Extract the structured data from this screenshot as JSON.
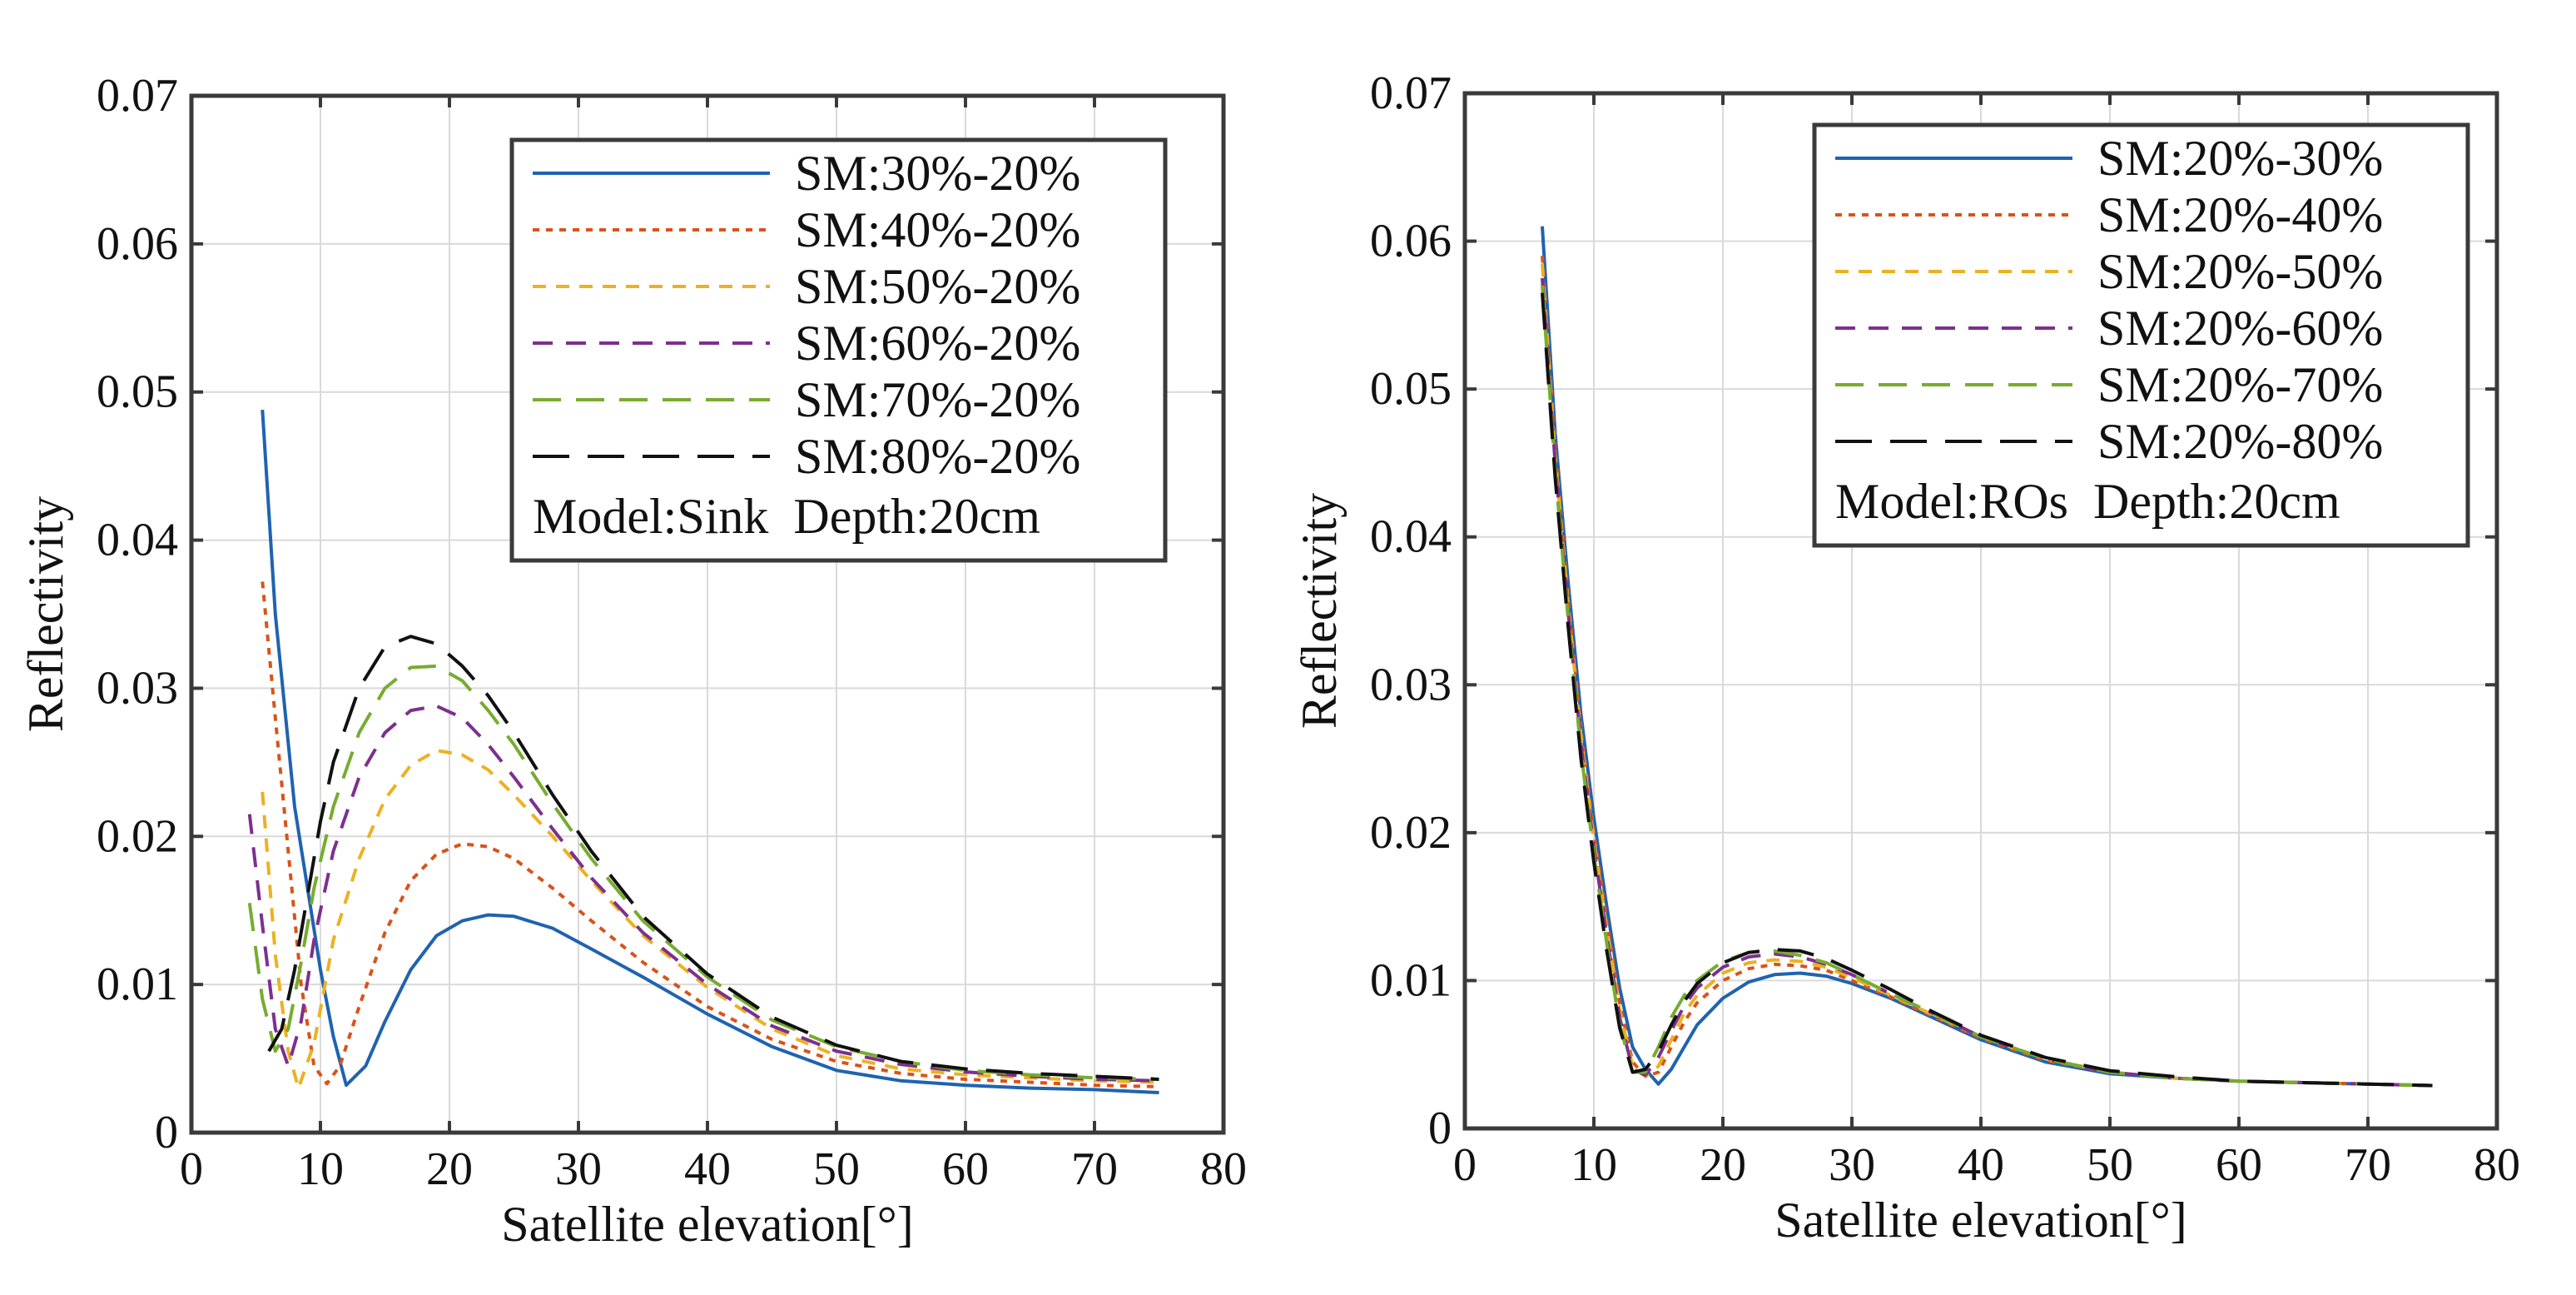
{
  "colors": {
    "series": [
      "#1f63b0",
      "#d95319",
      "#edb120",
      "#7e2f8e",
      "#77ac30",
      "#111111"
    ],
    "axis": "#3a3a3a",
    "grid": "#d9d9d9"
  },
  "chart_data": [
    {
      "type": "line",
      "xlabel": "Satellite elevation[°]",
      "ylabel": "Reflectivity",
      "xlim": [
        0,
        80
      ],
      "ylim": [
        0,
        0.07
      ],
      "xticks": [
        0,
        10,
        20,
        30,
        40,
        50,
        60,
        70,
        80
      ],
      "xtick_labels": [
        "0",
        "10",
        "20",
        "30",
        "40",
        "50",
        "60",
        "70",
        "80"
      ],
      "yticks": [
        0,
        0.01,
        0.02,
        0.03,
        0.04,
        0.05,
        0.06,
        0.07
      ],
      "ytick_labels": [
        "0",
        "0.01",
        "0.02",
        "0.03",
        "0.04",
        "0.05",
        "0.06",
        "0.07"
      ],
      "grid": true,
      "legend_position": "top-right",
      "legend_note": "Model:Sink  Depth:20cm",
      "series": [
        {
          "name": "SM:30%-20%",
          "dash": "solid",
          "x": [
            5.5,
            6.5,
            8,
            10,
            11,
            12,
            13.5,
            15,
            17,
            19,
            21,
            23,
            25,
            28,
            31,
            35,
            40,
            45,
            50,
            55,
            60,
            65,
            70,
            75
          ],
          "y": [
            0.0488,
            0.035,
            0.022,
            0.011,
            0.0065,
            0.0032,
            0.0045,
            0.0075,
            0.011,
            0.0133,
            0.0143,
            0.0147,
            0.0146,
            0.0138,
            0.0124,
            0.0105,
            0.008,
            0.0058,
            0.0042,
            0.0035,
            0.0032,
            0.003,
            0.0029,
            0.0027
          ]
        },
        {
          "name": "SM:40%-20%",
          "dash": "short-dot",
          "x": [
            5.5,
            6.5,
            7.5,
            8.5,
            9.5,
            10.5,
            11.5,
            13,
            15,
            17,
            19,
            21,
            23,
            25,
            28,
            31,
            35,
            40,
            45,
            50,
            55,
            60,
            65,
            70,
            75
          ],
          "y": [
            0.0372,
            0.028,
            0.019,
            0.01,
            0.0045,
            0.0033,
            0.0045,
            0.0085,
            0.0135,
            0.017,
            0.0188,
            0.0195,
            0.0193,
            0.0185,
            0.0165,
            0.0143,
            0.0115,
            0.0085,
            0.0063,
            0.0048,
            0.004,
            0.0036,
            0.0034,
            0.0032,
            0.0031
          ]
        },
        {
          "name": "SM:50%-20%",
          "dash": "dash-short",
          "x": [
            5.5,
            6.5,
            7.5,
            8.3,
            9.5,
            11,
            13,
            15,
            17,
            19,
            21,
            23,
            25,
            28,
            31,
            35,
            40,
            45,
            50,
            55,
            60,
            65,
            70,
            75
          ],
          "y": [
            0.023,
            0.012,
            0.0055,
            0.003,
            0.006,
            0.013,
            0.0185,
            0.0225,
            0.0248,
            0.0258,
            0.0255,
            0.0245,
            0.0228,
            0.02,
            0.017,
            0.0133,
            0.0098,
            0.007,
            0.0052,
            0.0043,
            0.0039,
            0.0037,
            0.0035,
            0.0034
          ]
        },
        {
          "name": "SM:60%-20%",
          "dash": "dash-medium",
          "x": [
            4.5,
            5.5,
            6.5,
            7.5,
            8.5,
            9.5,
            11,
            13,
            15,
            17,
            19,
            21,
            23,
            25,
            28,
            31,
            35,
            40,
            45,
            50,
            55,
            60,
            65,
            70,
            75
          ],
          "y": [
            0.0215,
            0.014,
            0.007,
            0.0045,
            0.0075,
            0.013,
            0.019,
            0.024,
            0.027,
            0.0285,
            0.0288,
            0.028,
            0.0262,
            0.024,
            0.0205,
            0.0172,
            0.0135,
            0.01,
            0.0072,
            0.0055,
            0.0046,
            0.0041,
            0.0038,
            0.0036,
            0.0035
          ]
        },
        {
          "name": "SM:70%-20%",
          "dash": "dash-long",
          "x": [
            4.5,
            5.5,
            6.5,
            7.5,
            8.5,
            9.5,
            11,
            13,
            15,
            17,
            19,
            21,
            23,
            25,
            28,
            31,
            35,
            40,
            45,
            50,
            55,
            60,
            65,
            70,
            75
          ],
          "y": [
            0.0155,
            0.009,
            0.0055,
            0.007,
            0.0115,
            0.0165,
            0.022,
            0.027,
            0.03,
            0.0314,
            0.0315,
            0.0305,
            0.0285,
            0.0262,
            0.0222,
            0.0185,
            0.0143,
            0.0105,
            0.0076,
            0.0058,
            0.0048,
            0.0042,
            0.0039,
            0.0037,
            0.0036
          ]
        },
        {
          "name": "SM:80%-20%",
          "dash": "dash-xlong",
          "x": [
            6,
            7,
            8,
            9,
            10,
            11,
            13,
            15,
            17,
            19,
            21,
            23,
            25,
            28,
            31,
            35,
            40,
            45,
            50,
            55,
            60,
            65,
            70,
            75
          ],
          "y": [
            0.0055,
            0.007,
            0.011,
            0.016,
            0.021,
            0.025,
            0.03,
            0.0328,
            0.0335,
            0.033,
            0.0315,
            0.0295,
            0.027,
            0.0228,
            0.019,
            0.0146,
            0.0107,
            0.0078,
            0.0059,
            0.0048,
            0.0043,
            0.004,
            0.0038,
            0.0036
          ]
        }
      ]
    },
    {
      "type": "line",
      "xlabel": "Satellite elevation[°]",
      "ylabel": "Reflectivity",
      "xlim": [
        0,
        80
      ],
      "ylim": [
        0,
        0.07
      ],
      "xticks": [
        0,
        10,
        20,
        30,
        40,
        50,
        60,
        70,
        80
      ],
      "xtick_labels": [
        "0",
        "10",
        "20",
        "30",
        "40",
        "50",
        "60",
        "70",
        "80"
      ],
      "yticks": [
        0,
        0.01,
        0.02,
        0.03,
        0.04,
        0.05,
        0.06,
        0.07
      ],
      "ytick_labels": [
        "0",
        "0.01",
        "0.02",
        "0.03",
        "0.04",
        "0.05",
        "0.06",
        "0.07"
      ],
      "grid": true,
      "legend_position": "top-right",
      "legend_note": "Model:ROs  Depth:20cm",
      "series": [
        {
          "name": "SM:20%-30%",
          "dash": "solid",
          "x": [
            6,
            7,
            8,
            9,
            10,
            11,
            12,
            13,
            14,
            15,
            16,
            17,
            18,
            20,
            22,
            24,
            26,
            28,
            30,
            33,
            36,
            40,
            45,
            50,
            55,
            60,
            65,
            70,
            75
          ],
          "y": [
            0.061,
            0.047,
            0.037,
            0.028,
            0.021,
            0.015,
            0.0095,
            0.0055,
            0.004,
            0.003,
            0.004,
            0.0055,
            0.007,
            0.0088,
            0.0099,
            0.0104,
            0.0105,
            0.0103,
            0.0098,
            0.0088,
            0.0076,
            0.006,
            0.0045,
            0.0037,
            0.0034,
            0.0032,
            0.0031,
            0.003,
            0.0029
          ]
        },
        {
          "name": "SM:20%-40%",
          "dash": "short-dot",
          "x": [
            6,
            7,
            8,
            9,
            10,
            11,
            12,
            13,
            14,
            15,
            16,
            17,
            18,
            20,
            22,
            24,
            26,
            28,
            30,
            33,
            36,
            40,
            45,
            50,
            55,
            60,
            65,
            70,
            75
          ],
          "y": [
            0.059,
            0.046,
            0.036,
            0.027,
            0.02,
            0.014,
            0.0085,
            0.0045,
            0.0035,
            0.0038,
            0.0055,
            0.0072,
            0.0085,
            0.01,
            0.0108,
            0.0111,
            0.011,
            0.0107,
            0.01,
            0.0089,
            0.0077,
            0.0061,
            0.0046,
            0.0038,
            0.0034,
            0.0032,
            0.0031,
            0.003,
            0.0029
          ]
        },
        {
          "name": "SM:20%-50%",
          "dash": "dash-short",
          "x": [
            6,
            7,
            8,
            9,
            10,
            11,
            12,
            13,
            14,
            15,
            16,
            17,
            18,
            20,
            22,
            24,
            26,
            28,
            30,
            33,
            36,
            40,
            45,
            50,
            55,
            60,
            65,
            70,
            75
          ],
          "y": [
            0.0585,
            0.0455,
            0.0355,
            0.0265,
            0.0195,
            0.0135,
            0.008,
            0.0042,
            0.0035,
            0.0042,
            0.006,
            0.0078,
            0.009,
            0.0105,
            0.0112,
            0.0114,
            0.0113,
            0.0109,
            0.0102,
            0.009,
            0.0078,
            0.0062,
            0.0047,
            0.0038,
            0.0034,
            0.0032,
            0.0031,
            0.003,
            0.0029
          ]
        },
        {
          "name": "SM:20%-60%",
          "dash": "dash-medium",
          "x": [
            6,
            7,
            8,
            9,
            10,
            11,
            12,
            13,
            14,
            15,
            16,
            17,
            18,
            20,
            22,
            24,
            26,
            28,
            30,
            33,
            36,
            40,
            45,
            50,
            55,
            60,
            65,
            70,
            75
          ],
          "y": [
            0.0575,
            0.045,
            0.035,
            0.026,
            0.019,
            0.013,
            0.0075,
            0.004,
            0.0036,
            0.0048,
            0.0066,
            0.0083,
            0.0095,
            0.0109,
            0.0116,
            0.0118,
            0.0116,
            0.0111,
            0.0104,
            0.0091,
            0.0079,
            0.0062,
            0.0047,
            0.0038,
            0.0034,
            0.0032,
            0.0031,
            0.003,
            0.0029
          ]
        },
        {
          "name": "SM:20%-70%",
          "dash": "dash-long",
          "x": [
            6,
            7,
            8,
            9,
            10,
            11,
            12,
            13,
            14,
            15,
            16,
            17,
            18,
            20,
            22,
            24,
            26,
            28,
            30,
            33,
            36,
            40,
            45,
            50,
            55,
            60,
            65,
            70,
            75
          ],
          "y": [
            0.057,
            0.0445,
            0.0345,
            0.0255,
            0.0185,
            0.0125,
            0.007,
            0.0038,
            0.0038,
            0.0055,
            0.0075,
            0.009,
            0.01,
            0.0113,
            0.0119,
            0.012,
            0.0117,
            0.0112,
            0.0104,
            0.0091,
            0.0079,
            0.0062,
            0.0047,
            0.0038,
            0.0034,
            0.0032,
            0.0031,
            0.003,
            0.0029
          ]
        },
        {
          "name": "SM:20%-80%",
          "dash": "dash-xlong",
          "x": [
            6,
            7,
            8,
            9,
            10,
            11,
            12,
            13,
            14,
            15,
            16,
            17,
            18,
            20,
            22,
            24,
            26,
            28,
            30,
            33,
            36,
            40,
            45,
            50,
            55,
            60,
            65,
            70,
            75
          ],
          "y": [
            0.0565,
            0.044,
            0.034,
            0.025,
            0.018,
            0.012,
            0.0068,
            0.0038,
            0.004,
            0.0052,
            0.007,
            0.0086,
            0.0098,
            0.0112,
            0.0119,
            0.0121,
            0.012,
            0.0115,
            0.0107,
            0.0094,
            0.008,
            0.0063,
            0.0048,
            0.0039,
            0.0035,
            0.0032,
            0.0031,
            0.003,
            0.0029
          ]
        }
      ]
    }
  ]
}
